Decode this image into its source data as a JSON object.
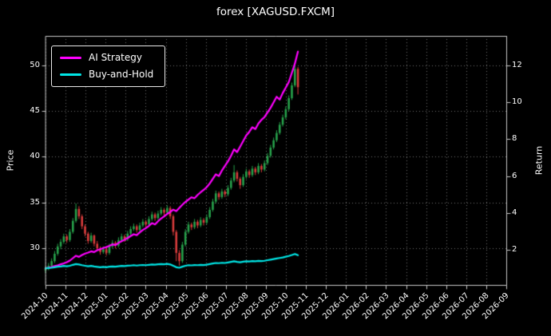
{
  "chart_data": {
    "type": "candlestick+line",
    "title": "forex [XAGUSD.FXCM]",
    "background": "#000000",
    "text_color": "#ffffff",
    "grid": {
      "show": true,
      "style": "dotted",
      "color": "rgba(255,255,255,0.45)"
    },
    "x_axis": {
      "tick_labels": [
        "2024-10",
        "2024-11",
        "2024-12",
        "2025-01",
        "2025-02",
        "2025-03",
        "2025-04",
        "2025-05",
        "2025-06",
        "2025-07",
        "2025-08",
        "2025-09",
        "2025-10",
        "2025-11",
        "2025-12",
        "2026-01",
        "2026-02",
        "2026-03",
        "2026-04",
        "2026-05",
        "2026-06",
        "2026-07",
        "2026-08",
        "2026-09"
      ],
      "axis_span_months": 23,
      "data_span_months": 12.6
    },
    "left_axis": {
      "label": "Price",
      "ticks": [
        30,
        35,
        40,
        45,
        50
      ],
      "range": [
        26.0,
        53.2
      ]
    },
    "right_axis": {
      "label": "Return",
      "ticks": [
        2,
        4,
        6,
        8,
        10,
        12
      ],
      "range": [
        0.1,
        13.6
      ]
    },
    "legend": {
      "position": "upper-left",
      "entries": [
        {
          "label": "AI Strategy",
          "color": "#ff00ff"
        },
        {
          "label": "Buy-and-Hold",
          "color": "#00e5e5"
        }
      ]
    },
    "price_candles": {
      "axis": "left",
      "up_color": "#26a04a",
      "down_color": "#d83b3b",
      "ohlc": [
        [
          27.6,
          28.0,
          27.3,
          27.8
        ],
        [
          27.8,
          28.4,
          27.6,
          28.1
        ],
        [
          28.1,
          28.9,
          28.0,
          28.6
        ],
        [
          28.6,
          29.7,
          28.4,
          29.4
        ],
        [
          29.4,
          30.5,
          29.2,
          30.2
        ],
        [
          30.2,
          31.0,
          29.9,
          30.7
        ],
        [
          30.7,
          31.6,
          30.5,
          31.3
        ],
        [
          31.3,
          31.5,
          30.6,
          30.9
        ],
        [
          30.9,
          32.1,
          30.7,
          31.8
        ],
        [
          31.8,
          33.3,
          31.6,
          33.0
        ],
        [
          33.0,
          34.9,
          32.8,
          34.3
        ],
        [
          34.3,
          34.6,
          33.2,
          33.5
        ],
        [
          33.5,
          33.7,
          32.1,
          32.4
        ],
        [
          32.4,
          32.6,
          31.3,
          31.6
        ],
        [
          31.6,
          31.8,
          30.5,
          30.8
        ],
        [
          30.8,
          31.7,
          30.6,
          31.4
        ],
        [
          31.4,
          31.5,
          30.2,
          30.5
        ],
        [
          30.5,
          30.8,
          29.7,
          30.0
        ],
        [
          30.0,
          30.2,
          29.3,
          29.6
        ],
        [
          29.6,
          30.2,
          29.4,
          29.9
        ],
        [
          29.9,
          30.1,
          29.2,
          29.5
        ],
        [
          29.5,
          30.5,
          29.3,
          30.2
        ],
        [
          30.2,
          30.9,
          30.0,
          30.6
        ],
        [
          30.6,
          30.8,
          30.0,
          30.3
        ],
        [
          30.3,
          31.2,
          30.1,
          30.9
        ],
        [
          30.9,
          31.6,
          30.7,
          31.3
        ],
        [
          31.3,
          31.5,
          30.7,
          31.0
        ],
        [
          31.0,
          31.9,
          30.8,
          31.6
        ],
        [
          31.6,
          32.4,
          31.4,
          32.1
        ],
        [
          32.1,
          32.7,
          31.9,
          32.4
        ],
        [
          32.4,
          32.6,
          31.7,
          32.0
        ],
        [
          32.0,
          32.8,
          31.8,
          32.5
        ],
        [
          32.5,
          33.2,
          32.3,
          32.9
        ],
        [
          32.9,
          33.1,
          32.3,
          32.6
        ],
        [
          32.6,
          33.5,
          32.4,
          33.2
        ],
        [
          33.2,
          34.0,
          33.0,
          33.7
        ],
        [
          33.7,
          33.9,
          33.0,
          33.3
        ],
        [
          33.3,
          34.1,
          33.1,
          33.8
        ],
        [
          33.8,
          34.5,
          33.6,
          34.2
        ],
        [
          34.2,
          34.4,
          33.6,
          33.9
        ],
        [
          33.9,
          34.7,
          33.7,
          34.4
        ],
        [
          34.4,
          34.6,
          33.2,
          33.5
        ],
        [
          33.5,
          33.7,
          31.4,
          31.8
        ],
        [
          31.8,
          32.0,
          28.6,
          29.5
        ],
        [
          29.5,
          29.8,
          28.1,
          28.6
        ],
        [
          28.6,
          30.7,
          28.4,
          30.4
        ],
        [
          30.4,
          32.1,
          30.2,
          31.8
        ],
        [
          31.8,
          32.9,
          31.6,
          32.6
        ],
        [
          32.6,
          32.8,
          32.0,
          32.3
        ],
        [
          32.3,
          33.2,
          32.1,
          32.9
        ],
        [
          32.9,
          33.1,
          32.2,
          32.5
        ],
        [
          32.5,
          33.4,
          32.3,
          33.1
        ],
        [
          33.1,
          33.3,
          32.5,
          32.8
        ],
        [
          32.8,
          33.7,
          32.6,
          33.4
        ],
        [
          33.4,
          34.5,
          33.2,
          34.2
        ],
        [
          34.2,
          35.4,
          34.0,
          35.1
        ],
        [
          35.1,
          36.3,
          34.9,
          36.0
        ],
        [
          36.0,
          36.2,
          35.3,
          35.6
        ],
        [
          35.6,
          36.5,
          35.4,
          36.2
        ],
        [
          36.2,
          36.4,
          35.6,
          35.9
        ],
        [
          35.9,
          36.9,
          35.7,
          36.6
        ],
        [
          36.6,
          37.7,
          36.4,
          37.4
        ],
        [
          37.4,
          39.1,
          37.2,
          38.3
        ],
        [
          38.3,
          38.5,
          37.3,
          37.6
        ],
        [
          37.6,
          37.8,
          36.5,
          36.9
        ],
        [
          36.9,
          38.1,
          36.7,
          37.8
        ],
        [
          37.8,
          38.7,
          37.6,
          38.4
        ],
        [
          38.4,
          38.6,
          37.7,
          38.0
        ],
        [
          38.0,
          39.0,
          37.8,
          38.7
        ],
        [
          38.7,
          38.9,
          38.0,
          38.3
        ],
        [
          38.3,
          39.3,
          38.1,
          39.0
        ],
        [
          39.0,
          39.2,
          38.3,
          38.6
        ],
        [
          38.6,
          39.6,
          38.4,
          39.3
        ],
        [
          39.3,
          40.4,
          39.1,
          40.1
        ],
        [
          40.1,
          41.3,
          39.9,
          41.0
        ],
        [
          41.0,
          42.1,
          40.8,
          41.8
        ],
        [
          41.8,
          42.9,
          41.6,
          42.6
        ],
        [
          42.6,
          43.8,
          42.4,
          43.5
        ],
        [
          43.5,
          44.6,
          43.3,
          44.3
        ],
        [
          44.3,
          45.5,
          44.1,
          45.2
        ],
        [
          45.2,
          46.7,
          45.0,
          46.4
        ],
        [
          46.4,
          48.1,
          46.2,
          47.8
        ],
        [
          47.8,
          50.3,
          47.6,
          49.6
        ],
        [
          49.6,
          49.8,
          46.8,
          47.6
        ]
      ]
    },
    "series": [
      {
        "name": "AI Strategy",
        "axis": "right",
        "color": "#ff00ff",
        "line_width": 2.2,
        "values": [
          1.0,
          1.03,
          1.07,
          1.12,
          1.16,
          1.22,
          1.27,
          1.33,
          1.42,
          1.55,
          1.68,
          1.62,
          1.72,
          1.8,
          1.85,
          1.92,
          1.88,
          1.98,
          2.04,
          2.1,
          2.15,
          2.22,
          2.3,
          2.26,
          2.38,
          2.47,
          2.55,
          2.64,
          2.75,
          2.85,
          2.8,
          2.95,
          3.08,
          3.18,
          3.3,
          3.45,
          3.38,
          3.55,
          3.7,
          3.82,
          3.95,
          4.05,
          4.18,
          4.1,
          4.28,
          4.45,
          4.6,
          4.72,
          4.85,
          4.8,
          4.98,
          5.12,
          5.25,
          5.4,
          5.6,
          5.85,
          6.1,
          6.0,
          6.3,
          6.55,
          6.8,
          7.1,
          7.45,
          7.3,
          7.6,
          7.9,
          8.2,
          8.4,
          8.65,
          8.55,
          8.85,
          9.05,
          9.2,
          9.45,
          9.7,
          10.0,
          10.3,
          10.15,
          10.5,
          10.8,
          11.1,
          11.6,
          12.1,
          12.75
        ]
      },
      {
        "name": "Buy-and-Hold",
        "axis": "right",
        "color": "#00e5e5",
        "line_width": 2.2,
        "values": [
          1.0,
          1.01,
          1.03,
          1.06,
          1.09,
          1.1,
          1.13,
          1.11,
          1.14,
          1.19,
          1.23,
          1.21,
          1.17,
          1.14,
          1.11,
          1.13,
          1.1,
          1.08,
          1.06,
          1.08,
          1.06,
          1.09,
          1.1,
          1.09,
          1.11,
          1.13,
          1.12,
          1.14,
          1.15,
          1.17,
          1.15,
          1.17,
          1.18,
          1.17,
          1.19,
          1.21,
          1.2,
          1.22,
          1.23,
          1.22,
          1.24,
          1.21,
          1.14,
          1.06,
          1.03,
          1.09,
          1.14,
          1.17,
          1.16,
          1.18,
          1.17,
          1.19,
          1.18,
          1.2,
          1.23,
          1.26,
          1.29,
          1.28,
          1.3,
          1.29,
          1.32,
          1.35,
          1.38,
          1.35,
          1.33,
          1.36,
          1.38,
          1.37,
          1.39,
          1.38,
          1.4,
          1.39,
          1.41,
          1.44,
          1.47,
          1.5,
          1.53,
          1.56,
          1.59,
          1.63,
          1.67,
          1.72,
          1.78,
          1.71
        ]
      }
    ]
  }
}
